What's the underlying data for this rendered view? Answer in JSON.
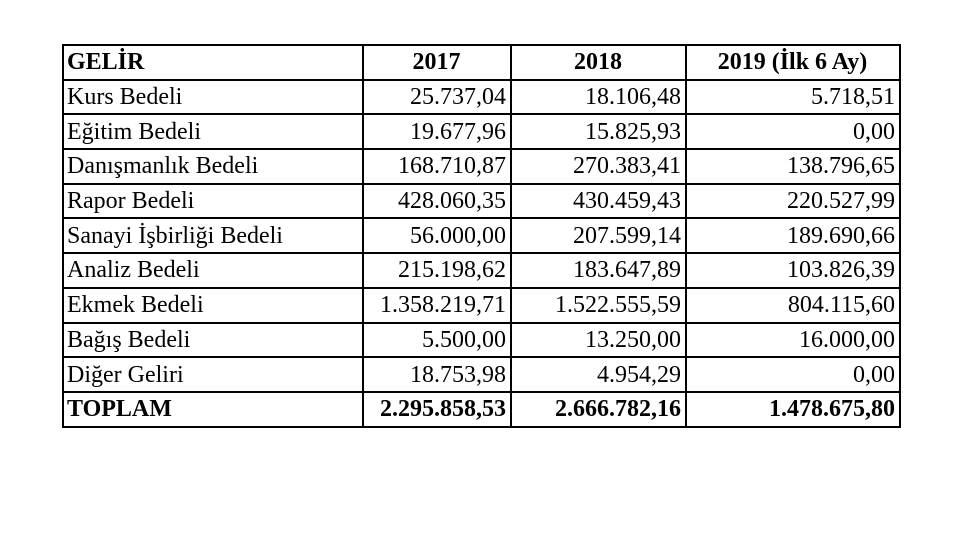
{
  "page": {
    "background": "#ffffff"
  },
  "table": {
    "columns": [
      "GELİR",
      "2017",
      "2018",
      "2019 (İlk 6 Ay)"
    ],
    "rows": [
      {
        "label": "Kurs Bedeli",
        "values": [
          "25.737,04",
          "18.106,48",
          "5.718,51"
        ]
      },
      {
        "label": "Eğitim Bedeli",
        "values": [
          "19.677,96",
          "15.825,93",
          "0,00"
        ]
      },
      {
        "label": "Danışmanlık Bedeli",
        "values": [
          "168.710,87",
          "270.383,41",
          "138.796,65"
        ]
      },
      {
        "label": "Rapor Bedeli",
        "values": [
          "428.060,35",
          "430.459,43",
          "220.527,99"
        ]
      },
      {
        "label": "Sanayi İşbirliği Bedeli",
        "values": [
          "56.000,00",
          "207.599,14",
          "189.690,66"
        ]
      },
      {
        "label": "Analiz Bedeli",
        "values": [
          "215.198,62",
          "183.647,89",
          "103.826,39"
        ]
      },
      {
        "label": "Ekmek Bedeli",
        "values": [
          "1.358.219,71",
          "1.522.555,59",
          "804.115,60"
        ]
      },
      {
        "label": "Bağış Bedeli",
        "values": [
          "5.500,00",
          "13.250,00",
          "16.000,00"
        ]
      },
      {
        "label": "Diğer Geliri",
        "values": [
          "18.753,98",
          "4.954,29",
          "0,00"
        ]
      }
    ],
    "total": {
      "label": "TOPLAM",
      "values": [
        "2.295.858,53",
        "2.666.782,16",
        "1.478.675,80"
      ]
    },
    "colors": {
      "border": "#000000",
      "text": "#000000",
      "background": "#ffffff"
    }
  }
}
